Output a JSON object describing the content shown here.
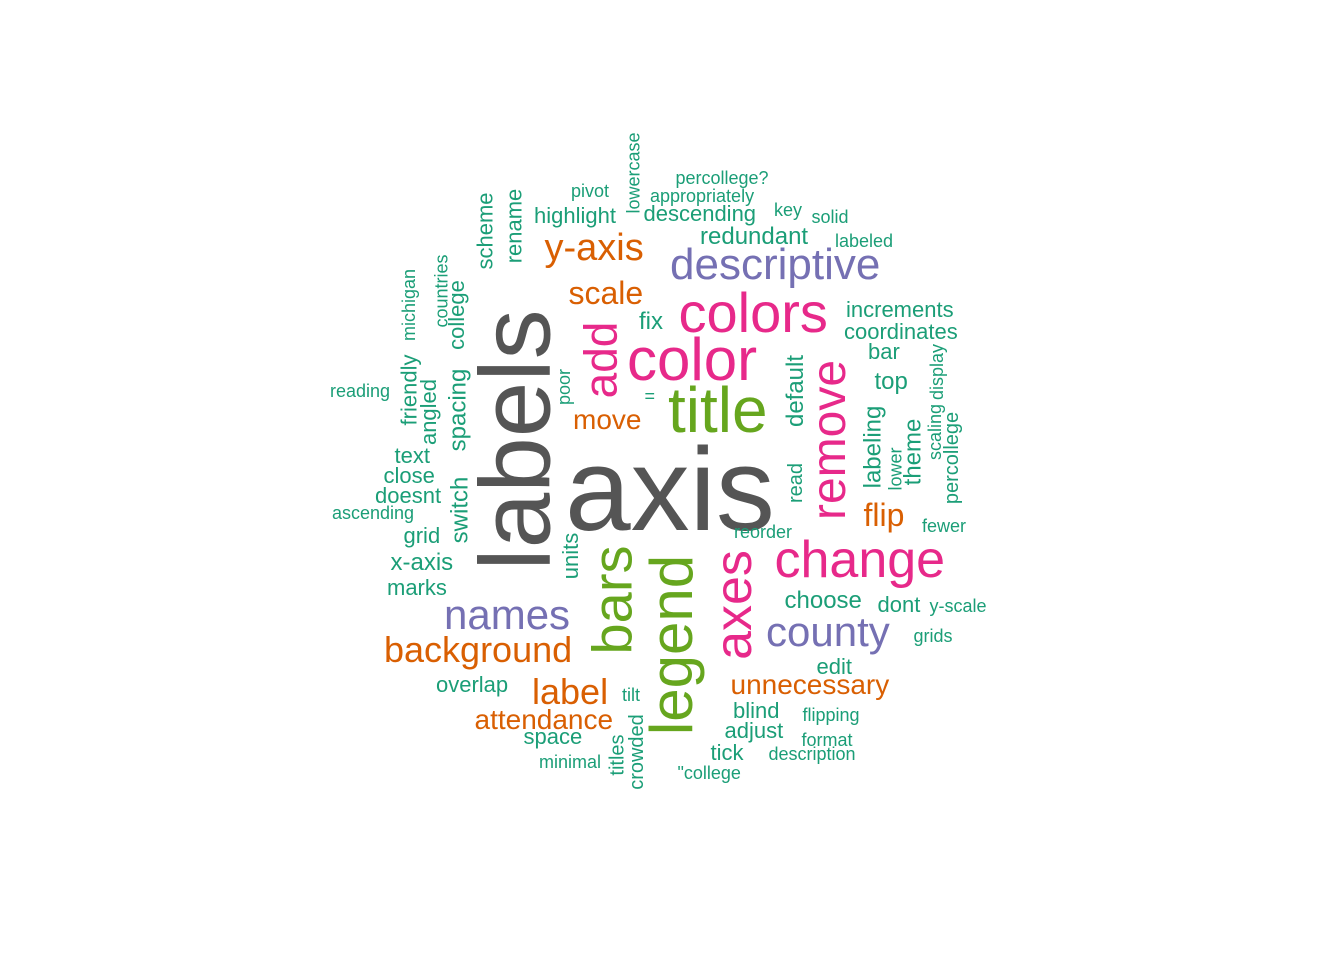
{
  "colors": {
    "gray": "#555555",
    "green": "#1b9e77",
    "orange": "#d95f02",
    "purple": "#7570b3",
    "pink": "#e7298a",
    "lime": "#66a61e"
  },
  "words": [
    {
      "text": "axis",
      "color": "gray"
    },
    {
      "text": "labels",
      "color": "gray"
    },
    {
      "text": "title",
      "color": "lime"
    },
    {
      "text": "legend",
      "color": "lime"
    },
    {
      "text": "bars",
      "color": "lime"
    },
    {
      "text": "color",
      "color": "pink"
    },
    {
      "text": "colors",
      "color": "pink"
    },
    {
      "text": "axes",
      "color": "pink"
    },
    {
      "text": "change",
      "color": "pink"
    },
    {
      "text": "remove",
      "color": "pink"
    },
    {
      "text": "add",
      "color": "pink"
    },
    {
      "text": "descriptive",
      "color": "purple"
    },
    {
      "text": "names",
      "color": "purple"
    },
    {
      "text": "county",
      "color": "purple"
    },
    {
      "text": "y-axis",
      "color": "orange"
    },
    {
      "text": "background",
      "color": "orange"
    },
    {
      "text": "label",
      "color": "orange"
    },
    {
      "text": "scale",
      "color": "orange"
    },
    {
      "text": "move",
      "color": "orange"
    },
    {
      "text": "flip",
      "color": "orange"
    },
    {
      "text": "unnecessary",
      "color": "orange"
    },
    {
      "text": "attendance",
      "color": "orange"
    },
    {
      "text": "redundant",
      "color": "green"
    },
    {
      "text": "highlight",
      "color": "green"
    },
    {
      "text": "descending",
      "color": "green"
    },
    {
      "text": "appropriately",
      "color": "green"
    },
    {
      "text": "percollege?",
      "color": "green"
    },
    {
      "text": "pivot",
      "color": "green"
    },
    {
      "text": "lowercase",
      "color": "green"
    },
    {
      "text": "key",
      "color": "green"
    },
    {
      "text": "solid",
      "color": "green"
    },
    {
      "text": "labeled",
      "color": "green"
    },
    {
      "text": "scheme",
      "color": "green"
    },
    {
      "text": "rename",
      "color": "green"
    },
    {
      "text": "increments",
      "color": "green"
    },
    {
      "text": "coordinates",
      "color": "green"
    },
    {
      "text": "bar",
      "color": "green"
    },
    {
      "text": "fix",
      "color": "green"
    },
    {
      "text": "top",
      "color": "green"
    },
    {
      "text": "display",
      "color": "green"
    },
    {
      "text": "scaling",
      "color": "green"
    },
    {
      "text": "percollege",
      "color": "green"
    },
    {
      "text": "theme",
      "color": "green"
    },
    {
      "text": "lower",
      "color": "green"
    },
    {
      "text": "labeling",
      "color": "green"
    },
    {
      "text": "default",
      "color": "green"
    },
    {
      "text": "read",
      "color": "green"
    },
    {
      "text": "fewer",
      "color": "green"
    },
    {
      "text": "reorder",
      "color": "green"
    },
    {
      "text": "poor",
      "color": "green"
    },
    {
      "text": "=",
      "color": "green"
    },
    {
      "text": "countries",
      "color": "green"
    },
    {
      "text": "college",
      "color": "green"
    },
    {
      "text": "michigan",
      "color": "green"
    },
    {
      "text": "spacing",
      "color": "green"
    },
    {
      "text": "switch",
      "color": "green"
    },
    {
      "text": "friendly",
      "color": "green"
    },
    {
      "text": "angled",
      "color": "green"
    },
    {
      "text": "reading",
      "color": "green"
    },
    {
      "text": "text",
      "color": "green"
    },
    {
      "text": "close",
      "color": "green"
    },
    {
      "text": "doesnt",
      "color": "green"
    },
    {
      "text": "ascending",
      "color": "green"
    },
    {
      "text": "grid",
      "color": "green"
    },
    {
      "text": "x-axis",
      "color": "green"
    },
    {
      "text": "marks",
      "color": "green"
    },
    {
      "text": "units",
      "color": "green"
    },
    {
      "text": "choose",
      "color": "green"
    },
    {
      "text": "dont",
      "color": "green"
    },
    {
      "text": "y-scale",
      "color": "green"
    },
    {
      "text": "grids",
      "color": "green"
    },
    {
      "text": "edit",
      "color": "green"
    },
    {
      "text": "overlap",
      "color": "green"
    },
    {
      "text": "tilt",
      "color": "green"
    },
    {
      "text": "blind",
      "color": "green"
    },
    {
      "text": "flipping",
      "color": "green"
    },
    {
      "text": "adjust",
      "color": "green"
    },
    {
      "text": "format",
      "color": "green"
    },
    {
      "text": "space",
      "color": "green"
    },
    {
      "text": "crowded",
      "color": "green"
    },
    {
      "text": "titles",
      "color": "green"
    },
    {
      "text": "tick",
      "color": "green"
    },
    {
      "text": "description",
      "color": "green"
    },
    {
      "text": "minimal",
      "color": "green"
    },
    {
      "text": "\"college",
      "color": "green"
    }
  ]
}
